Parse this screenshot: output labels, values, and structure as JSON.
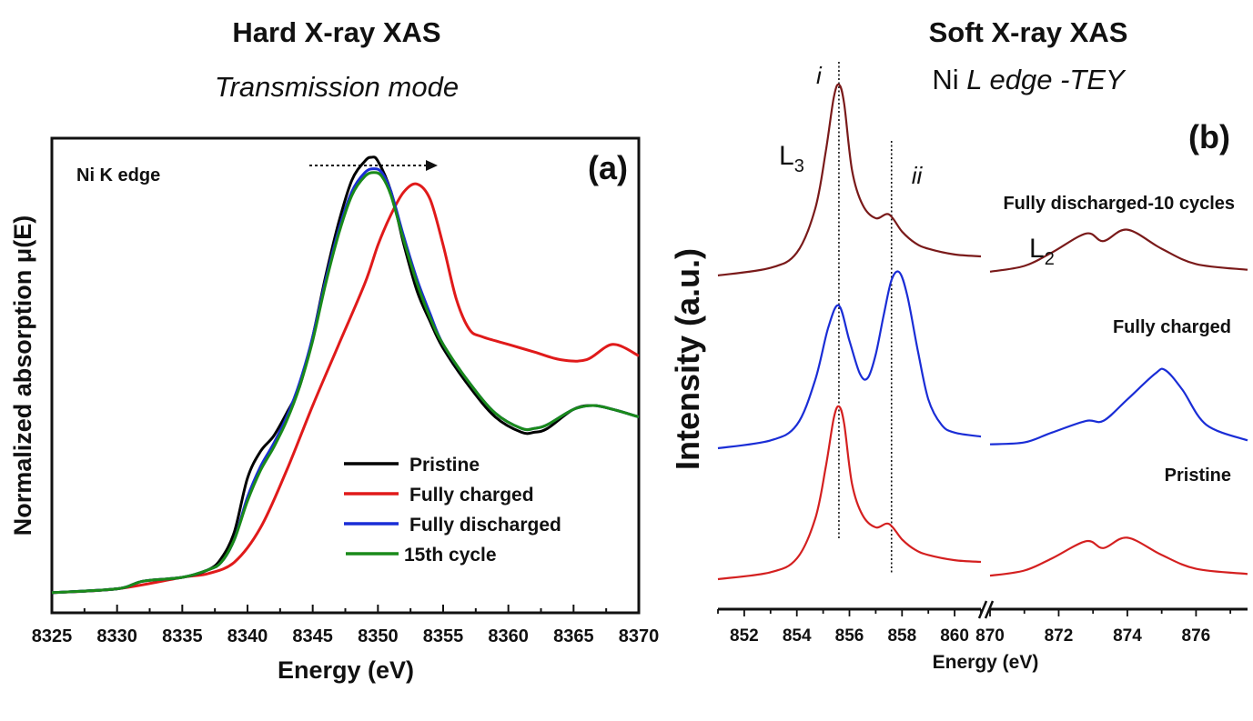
{
  "header_a": {
    "title": "Hard X-ray XAS",
    "subtitle": "Transmission mode"
  },
  "header_b": {
    "title": "Soft X-ray XAS",
    "subtitle_prefix": "Ni ",
    "subtitle_italic": "L edge -TEY"
  },
  "chart_data": [
    {
      "type": "line",
      "panel": "(a)",
      "annotation": "Ni K edge",
      "xlabel": "Energy (eV)",
      "ylabel": "Normalized absorption μ(E)",
      "xlim": [
        8325,
        8370
      ],
      "ylim": [
        0,
        1.2
      ],
      "xticks": [
        8325,
        8330,
        8335,
        8340,
        8345,
        8350,
        8355,
        8360,
        8365,
        8370
      ],
      "legend_position": "bottom-right",
      "series": [
        {
          "name": "Pristine",
          "color": "#000000",
          "x": [
            8325,
            8330,
            8332,
            8335,
            8337,
            8338,
            8339,
            8340,
            8341,
            8342,
            8343,
            8344,
            8345,
            8346,
            8347,
            8348,
            8349,
            8349.5,
            8350,
            8351,
            8352,
            8353,
            8354,
            8355,
            8357,
            8359,
            8361,
            8362,
            8363,
            8365,
            8366.5,
            8368,
            8370
          ],
          "y": [
            0.01,
            0.02,
            0.04,
            0.05,
            0.07,
            0.1,
            0.17,
            0.31,
            0.38,
            0.42,
            0.48,
            0.55,
            0.68,
            0.84,
            0.98,
            1.09,
            1.14,
            1.15,
            1.14,
            1.06,
            0.92,
            0.8,
            0.72,
            0.65,
            0.55,
            0.47,
            0.43,
            0.43,
            0.44,
            0.49,
            0.5,
            0.49,
            0.47
          ]
        },
        {
          "name": "Fully charged",
          "color": "#e01a1a",
          "x": [
            8325,
            8330,
            8335,
            8337,
            8339,
            8341,
            8343,
            8345,
            8347,
            8349,
            8350,
            8351,
            8352,
            8353,
            8354,
            8355,
            8356,
            8357,
            8358,
            8360,
            8362,
            8364,
            8366,
            8368,
            8370
          ],
          "y": [
            0.01,
            0.02,
            0.05,
            0.06,
            0.09,
            0.18,
            0.33,
            0.5,
            0.66,
            0.82,
            0.92,
            1.0,
            1.06,
            1.08,
            1.04,
            0.92,
            0.78,
            0.7,
            0.68,
            0.66,
            0.64,
            0.62,
            0.62,
            0.66,
            0.63
          ]
        },
        {
          "name": "Fully discharged",
          "color": "#1a2dd6",
          "x": [
            8325,
            8330,
            8332,
            8335,
            8337,
            8338,
            8339,
            8340,
            8341,
            8342,
            8343,
            8344,
            8345,
            8346,
            8347,
            8348,
            8349,
            8349.7,
            8350.3,
            8351,
            8352,
            8353,
            8354,
            8355,
            8357,
            8359,
            8361,
            8362,
            8363,
            8365,
            8366.5,
            8368,
            8370
          ],
          "y": [
            0.01,
            0.02,
            0.04,
            0.05,
            0.07,
            0.09,
            0.15,
            0.26,
            0.34,
            0.4,
            0.47,
            0.56,
            0.68,
            0.83,
            0.96,
            1.06,
            1.11,
            1.12,
            1.11,
            1.06,
            0.94,
            0.83,
            0.74,
            0.66,
            0.56,
            0.48,
            0.44,
            0.44,
            0.45,
            0.49,
            0.5,
            0.49,
            0.47
          ]
        },
        {
          "name": "15th cycle",
          "color": "#1a8a1a",
          "x": [
            8325,
            8330,
            8332,
            8335,
            8337,
            8338,
            8339,
            8340,
            8341,
            8342,
            8343,
            8344,
            8345,
            8346,
            8347,
            8348,
            8349,
            8349.7,
            8350.3,
            8351,
            8352,
            8353,
            8354,
            8355,
            8357,
            8359,
            8361,
            8362,
            8363,
            8365,
            8366.5,
            8368,
            8370
          ],
          "y": [
            0.01,
            0.02,
            0.04,
            0.05,
            0.07,
            0.09,
            0.15,
            0.25,
            0.33,
            0.39,
            0.46,
            0.55,
            0.67,
            0.82,
            0.95,
            1.05,
            1.1,
            1.11,
            1.1,
            1.05,
            0.93,
            0.82,
            0.73,
            0.66,
            0.56,
            0.48,
            0.44,
            0.44,
            0.45,
            0.49,
            0.5,
            0.49,
            0.47
          ]
        }
      ]
    },
    {
      "type": "line",
      "panel": "(b)",
      "xlabel": "Energy (eV)",
      "ylabel": "Intensity (a.u.)",
      "xlim_left": [
        851,
        861
      ],
      "xlim_right": [
        870,
        877.5
      ],
      "xticks_left": [
        852,
        854,
        856,
        858,
        860
      ],
      "xticks_right": [
        870,
        872,
        874,
        876
      ],
      "axis_break": true,
      "vertical_markers": [
        {
          "label": "i",
          "x": 855.6
        },
        {
          "label": "ii",
          "x": 857.6
        }
      ],
      "edge_labels": {
        "l3_main": "L",
        "l3_sub": "3",
        "l2_main": "L",
        "l2_sub": "2"
      },
      "series": [
        {
          "name": "Fully discharged-10 cycles",
          "color": "#7a1a1a",
          "offset": 2.0,
          "x_left": [
            851,
            853,
            854,
            854.7,
            855.1,
            855.4,
            855.6,
            855.8,
            856.1,
            856.5,
            857,
            857.5,
            858,
            858.5,
            859,
            860,
            861
          ],
          "y_left": [
            0.0,
            0.04,
            0.12,
            0.35,
            0.65,
            0.93,
            1.0,
            0.9,
            0.55,
            0.37,
            0.3,
            0.32,
            0.23,
            0.17,
            0.14,
            0.11,
            0.1
          ],
          "x_right": [
            870,
            871,
            871.8,
            872.8,
            873.3,
            874,
            875,
            876,
            877.5
          ],
          "y_right": [
            0.02,
            0.05,
            0.12,
            0.22,
            0.18,
            0.24,
            0.14,
            0.06,
            0.03
          ]
        },
        {
          "name": "Fully charged",
          "color": "#1a2dd6",
          "offset": 1.0,
          "x_left": [
            851,
            853,
            854,
            854.7,
            855.2,
            855.6,
            856,
            856.4,
            856.7,
            857,
            857.3,
            857.6,
            857.9,
            858.2,
            858.6,
            859,
            859.5,
            860,
            861
          ],
          "y_left": [
            0.0,
            0.04,
            0.12,
            0.35,
            0.62,
            0.73,
            0.55,
            0.38,
            0.36,
            0.48,
            0.68,
            0.86,
            0.9,
            0.78,
            0.5,
            0.25,
            0.12,
            0.08,
            0.06
          ],
          "x_right": [
            870,
            871,
            871.8,
            872.8,
            873.3,
            874,
            874.8,
            875.1,
            875.6,
            876.3,
            877.5
          ],
          "y_right": [
            0.02,
            0.03,
            0.08,
            0.14,
            0.14,
            0.25,
            0.38,
            0.4,
            0.3,
            0.12,
            0.04
          ]
        },
        {
          "name": "Pristine",
          "color": "#d42020",
          "offset": 0.0,
          "x_left": [
            851,
            853,
            854,
            854.7,
            855.1,
            855.4,
            855.6,
            855.8,
            856.1,
            856.5,
            857,
            857.5,
            858,
            858.5,
            859,
            860,
            861
          ],
          "y_left": [
            0.0,
            0.04,
            0.12,
            0.35,
            0.65,
            0.93,
            1.0,
            0.9,
            0.55,
            0.37,
            0.3,
            0.32,
            0.23,
            0.17,
            0.14,
            0.11,
            0.1
          ],
          "x_right": [
            870,
            871,
            871.8,
            872.8,
            873.3,
            874,
            875,
            876,
            877.5
          ],
          "y_right": [
            0.02,
            0.05,
            0.12,
            0.22,
            0.18,
            0.24,
            0.14,
            0.06,
            0.03
          ]
        }
      ]
    }
  ]
}
